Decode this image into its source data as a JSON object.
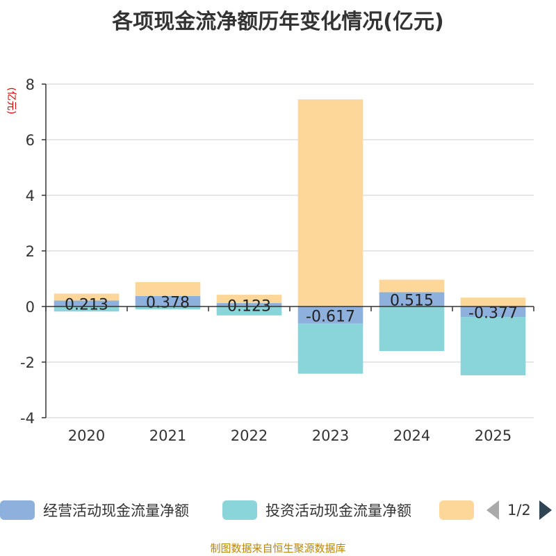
{
  "chart_data": {
    "type": "bar",
    "stacked": true,
    "title": "各项现金流净额历年变化情况(亿元)",
    "ylabel": "(亿元)",
    "xlabel": "",
    "ylim": [
      -4,
      8
    ],
    "yticks": [
      -4,
      -2,
      0,
      2,
      4,
      6,
      8
    ],
    "categories": [
      "2020",
      "2021",
      "2022",
      "2023",
      "2024",
      "2025"
    ],
    "series": [
      {
        "name": "经营活动现金流量净额",
        "color": "#8eb0dd",
        "values": [
          0.213,
          0.378,
          0.123,
          -0.617,
          0.515,
          -0.377
        ],
        "labels": [
          "0.213",
          "0.378",
          "0.123",
          "-0.617",
          "0.515",
          "-0.377"
        ]
      },
      {
        "name": "投资活动现金流量净额",
        "color": "#89d5d9",
        "values": [
          -0.18,
          -0.1,
          -0.32,
          -1.8,
          -1.6,
          -2.1
        ]
      },
      {
        "name": "",
        "color": "#fdd799",
        "values": [
          0.25,
          0.5,
          0.3,
          7.45,
          0.45,
          0.32
        ]
      }
    ]
  },
  "legend": {
    "items": [
      {
        "label": "经营活动现金流量净额",
        "color": "#8eb0dd"
      },
      {
        "label": "投资活动现金流量净额",
        "color": "#89d5d9"
      },
      {
        "label": "",
        "color": "#fdd799"
      }
    ],
    "page": "1/2"
  },
  "source": "制图数据来自恒生聚源数据库"
}
